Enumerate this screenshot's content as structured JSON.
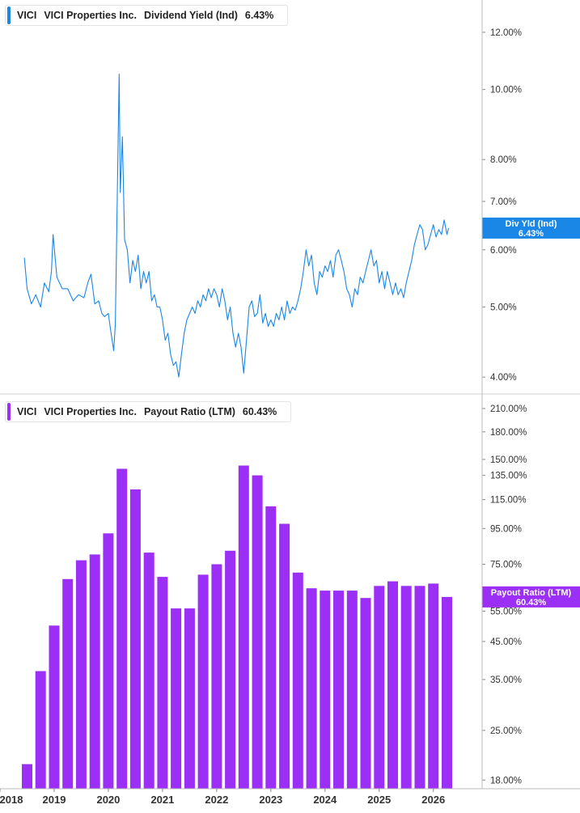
{
  "colors": {
    "yield_line": "#1a87e6",
    "payout_bar": "#9b2ff5",
    "axis": "#bbbbbb",
    "divider": "#d0d0d0"
  },
  "chart_data": [
    {
      "type": "line",
      "legend": {
        "ticker": "VICI",
        "company": "VICI Properties Inc.",
        "metric": "Dividend Yield (Ind)",
        "value": "6.43%"
      },
      "series": [
        {
          "name": "Div Yld (Ind)",
          "points": [
            [
              2018.45,
              5.85
            ],
            [
              2018.5,
              5.3
            ],
            [
              2018.58,
              5.05
            ],
            [
              2018.66,
              5.2
            ],
            [
              2018.75,
              5.0
            ],
            [
              2018.82,
              5.4
            ],
            [
              2018.9,
              5.25
            ],
            [
              2018.95,
              5.6
            ],
            [
              2018.98,
              6.3
            ],
            [
              2019.05,
              5.5
            ],
            [
              2019.15,
              5.3
            ],
            [
              2019.25,
              5.3
            ],
            [
              2019.35,
              5.1
            ],
            [
              2019.45,
              5.2
            ],
            [
              2019.55,
              5.15
            ],
            [
              2019.62,
              5.4
            ],
            [
              2019.68,
              5.55
            ],
            [
              2019.75,
              5.05
            ],
            [
              2019.82,
              5.1
            ],
            [
              2019.88,
              4.9
            ],
            [
              2019.93,
              4.85
            ],
            [
              2020.0,
              4.9
            ],
            [
              2020.05,
              4.6
            ],
            [
              2020.1,
              4.35
            ],
            [
              2020.13,
              4.75
            ],
            [
              2020.17,
              7.5
            ],
            [
              2020.2,
              10.5
            ],
            [
              2020.22,
              7.2
            ],
            [
              2020.26,
              8.6
            ],
            [
              2020.3,
              6.2
            ],
            [
              2020.35,
              6.0
            ],
            [
              2020.4,
              5.4
            ],
            [
              2020.45,
              5.8
            ],
            [
              2020.5,
              5.6
            ],
            [
              2020.55,
              5.9
            ],
            [
              2020.6,
              5.3
            ],
            [
              2020.65,
              5.6
            ],
            [
              2020.7,
              5.4
            ],
            [
              2020.75,
              5.6
            ],
            [
              2020.8,
              5.1
            ],
            [
              2020.85,
              5.2
            ],
            [
              2020.9,
              5.0
            ],
            [
              2020.95,
              5.0
            ],
            [
              2021.0,
              4.8
            ],
            [
              2021.05,
              4.5
            ],
            [
              2021.1,
              4.6
            ],
            [
              2021.15,
              4.3
            ],
            [
              2021.2,
              4.15
            ],
            [
              2021.25,
              4.2
            ],
            [
              2021.3,
              4.0
            ],
            [
              2021.35,
              4.3
            ],
            [
              2021.4,
              4.6
            ],
            [
              2021.45,
              4.8
            ],
            [
              2021.5,
              4.9
            ],
            [
              2021.55,
              5.0
            ],
            [
              2021.6,
              4.9
            ],
            [
              2021.65,
              5.1
            ],
            [
              2021.7,
              5.0
            ],
            [
              2021.75,
              5.2
            ],
            [
              2021.8,
              5.1
            ],
            [
              2021.85,
              5.3
            ],
            [
              2021.9,
              5.15
            ],
            [
              2021.95,
              5.3
            ],
            [
              2022.0,
              5.2
            ],
            [
              2022.05,
              5.0
            ],
            [
              2022.1,
              5.3
            ],
            [
              2022.15,
              5.1
            ],
            [
              2022.2,
              4.8
            ],
            [
              2022.25,
              5.0
            ],
            [
              2022.3,
              4.6
            ],
            [
              2022.35,
              4.4
            ],
            [
              2022.4,
              4.6
            ],
            [
              2022.45,
              4.4
            ],
            [
              2022.5,
              4.05
            ],
            [
              2022.55,
              4.5
            ],
            [
              2022.6,
              5.0
            ],
            [
              2022.65,
              5.1
            ],
            [
              2022.7,
              4.85
            ],
            [
              2022.75,
              4.9
            ],
            [
              2022.8,
              5.2
            ],
            [
              2022.85,
              4.75
            ],
            [
              2022.9,
              4.9
            ],
            [
              2022.95,
              4.7
            ],
            [
              2023.0,
              4.8
            ],
            [
              2023.05,
              4.7
            ],
            [
              2023.1,
              4.9
            ],
            [
              2023.15,
              4.8
            ],
            [
              2023.2,
              5.0
            ],
            [
              2023.25,
              4.8
            ],
            [
              2023.3,
              5.1
            ],
            [
              2023.35,
              4.9
            ],
            [
              2023.4,
              5.0
            ],
            [
              2023.45,
              4.95
            ],
            [
              2023.5,
              5.1
            ],
            [
              2023.55,
              5.3
            ],
            [
              2023.6,
              5.6
            ],
            [
              2023.65,
              6.0
            ],
            [
              2023.7,
              5.7
            ],
            [
              2023.75,
              5.9
            ],
            [
              2023.8,
              5.4
            ],
            [
              2023.85,
              5.2
            ],
            [
              2023.9,
              5.6
            ],
            [
              2023.95,
              5.5
            ],
            [
              2024.0,
              5.7
            ],
            [
              2024.05,
              5.6
            ],
            [
              2024.1,
              5.8
            ],
            [
              2024.15,
              5.5
            ],
            [
              2024.2,
              5.9
            ],
            [
              2024.25,
              6.0
            ],
            [
              2024.3,
              5.8
            ],
            [
              2024.35,
              5.6
            ],
            [
              2024.4,
              5.3
            ],
            [
              2024.45,
              5.2
            ],
            [
              2024.5,
              5.0
            ],
            [
              2024.55,
              5.3
            ],
            [
              2024.6,
              5.2
            ],
            [
              2024.65,
              5.5
            ],
            [
              2024.7,
              5.4
            ],
            [
              2024.75,
              5.6
            ],
            [
              2024.8,
              5.8
            ],
            [
              2024.85,
              6.0
            ],
            [
              2024.9,
              5.7
            ],
            [
              2024.95,
              5.8
            ],
            [
              2025.0,
              5.4
            ],
            [
              2025.05,
              5.6
            ],
            [
              2025.1,
              5.3
            ],
            [
              2025.15,
              5.6
            ],
            [
              2025.2,
              5.4
            ],
            [
              2025.25,
              5.2
            ],
            [
              2025.3,
              5.4
            ],
            [
              2025.35,
              5.2
            ],
            [
              2025.4,
              5.3
            ],
            [
              2025.45,
              5.15
            ],
            [
              2025.5,
              5.4
            ],
            [
              2025.55,
              5.6
            ],
            [
              2025.6,
              5.8
            ],
            [
              2025.65,
              6.1
            ],
            [
              2025.7,
              6.3
            ],
            [
              2025.75,
              6.5
            ],
            [
              2025.8,
              6.4
            ],
            [
              2025.85,
              6.0
            ],
            [
              2025.9,
              6.1
            ],
            [
              2025.95,
              6.3
            ],
            [
              2026.0,
              6.5
            ],
            [
              2026.05,
              6.25
            ],
            [
              2026.1,
              6.4
            ],
            [
              2026.15,
              6.3
            ],
            [
              2026.2,
              6.6
            ],
            [
              2026.25,
              6.3
            ],
            [
              2026.28,
              6.43
            ]
          ]
        }
      ],
      "y_scale": "log",
      "ylim": [
        3.8,
        13.3
      ],
      "y_ticks": [
        "12.00%",
        "10.00%",
        "8.00%",
        "7.00%",
        "6.00%",
        "5.00%",
        "4.00%"
      ],
      "y_tick_values": [
        12,
        10,
        8,
        7,
        6,
        5,
        4
      ],
      "tag": {
        "label": "Div Yld (Ind)",
        "value": "6.43%",
        "y": 6.43
      }
    },
    {
      "type": "bar",
      "legend": {
        "ticker": "VICI",
        "company": "VICI Properties Inc.",
        "metric": "Payout Ratio (LTM)",
        "value": "60.43%"
      },
      "series": [
        {
          "name": "Payout Ratio (LTM)",
          "x": [
            2018.5,
            2018.75,
            2019.0,
            2019.25,
            2019.5,
            2019.75,
            2020.0,
            2020.25,
            2020.5,
            2020.75,
            2021.0,
            2021.25,
            2021.5,
            2021.75,
            2022.0,
            2022.25,
            2022.5,
            2022.75,
            2023.0,
            2023.25,
            2023.5,
            2023.75,
            2024.0,
            2024.25,
            2024.5,
            2024.75,
            2025.0,
            2025.25,
            2025.5,
            2025.75,
            2026.0,
            2026.25
          ],
          "values": [
            20,
            37,
            50,
            68,
            77,
            80,
            92,
            141,
            123,
            81,
            69,
            56,
            56,
            70,
            75,
            82,
            144,
            135,
            110,
            98,
            71,
            64,
            63,
            63,
            63,
            60,
            65,
            67,
            65,
            65,
            66,
            60.43
          ]
        }
      ],
      "y_scale": "log",
      "ylim": [
        17,
        230
      ],
      "y_ticks": [
        "210.00%",
        "180.00%",
        "150.00%",
        "135.00%",
        "115.00%",
        "95.00%",
        "75.00%",
        "55.00%",
        "45.00%",
        "35.00%",
        "25.00%",
        "18.00%"
      ],
      "y_tick_values": [
        210,
        180,
        150,
        135,
        115,
        95,
        75,
        55,
        45,
        35,
        25,
        18
      ],
      "tag": {
        "label": "Payout Ratio (LTM)",
        "value": "60.43%",
        "y": 60.43
      }
    }
  ],
  "x_axis": {
    "labels": [
      "2018",
      "2019",
      "2020",
      "2021",
      "2022",
      "2023",
      "2024",
      "2025",
      "2026"
    ],
    "values": [
      2018,
      2019,
      2020,
      2021,
      2022,
      2023,
      2024,
      2025,
      2026
    ],
    "range": [
      2018.0,
      2026.9
    ]
  }
}
